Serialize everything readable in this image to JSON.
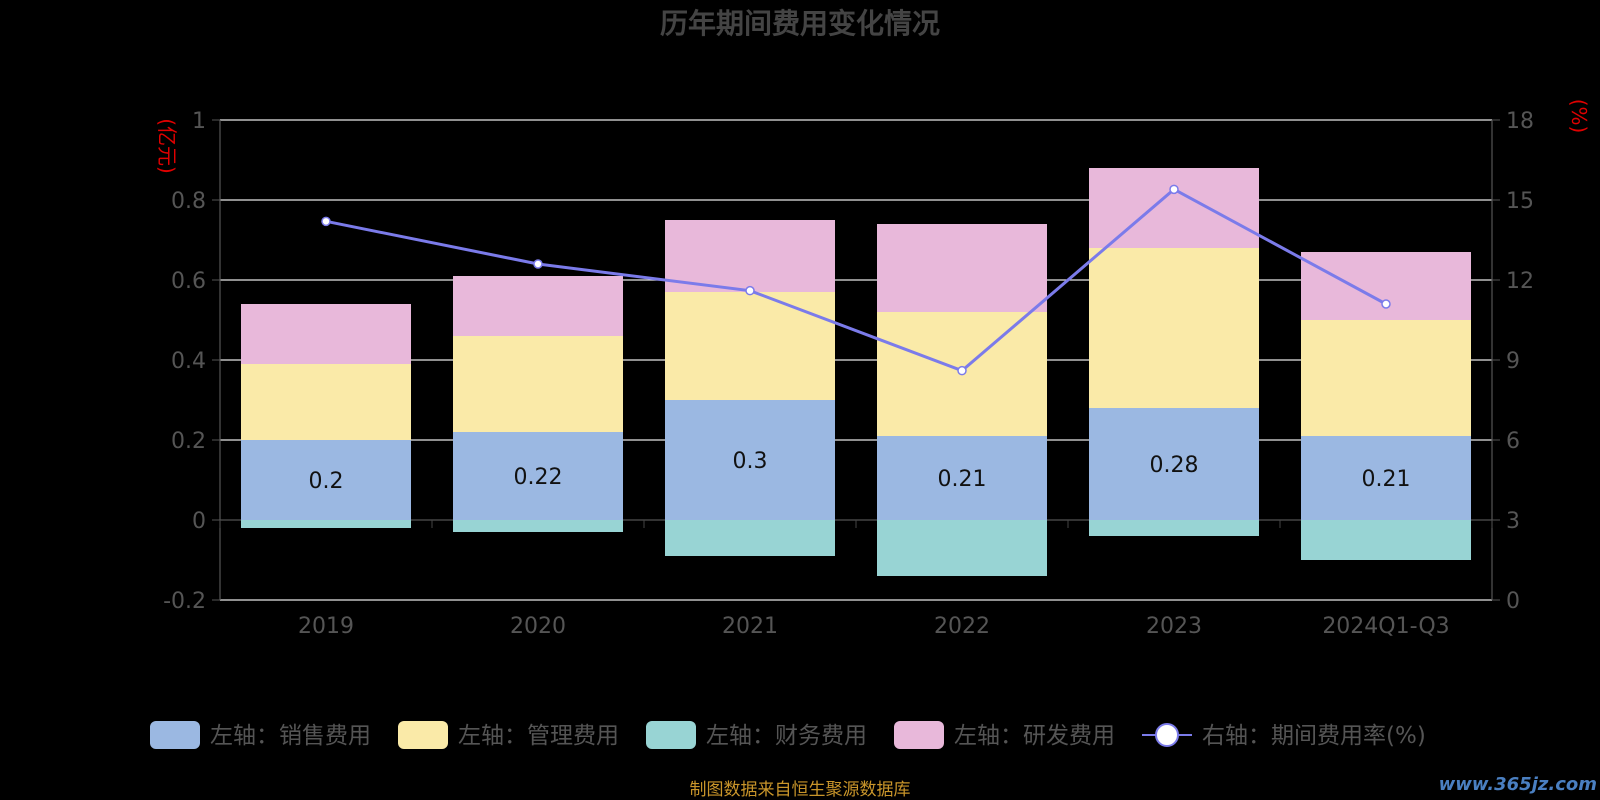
{
  "chart_data": {
    "type": "bar",
    "title": "历年期间费用变化情况",
    "categories": [
      "2019",
      "2020",
      "2021",
      "2022",
      "2023",
      "2024Q1-Q3"
    ],
    "left_axis": {
      "unit": "(亿元)",
      "min": -0.2,
      "max": 1,
      "ticks": [
        "1",
        "0.8",
        "0.6",
        "0.4",
        "0.2",
        "0",
        "-0.2"
      ]
    },
    "right_axis": {
      "unit": "(%)",
      "min": 0,
      "max": 18,
      "ticks": [
        "18",
        "15",
        "12",
        "9",
        "6",
        "3",
        "0"
      ]
    },
    "series": [
      {
        "name": "左轴：销售费用",
        "type": "bar",
        "stack": "positive",
        "color": "#9bb8e2",
        "values": [
          0.2,
          0.22,
          0.3,
          0.21,
          0.28,
          0.21
        ],
        "labels": [
          "0.2",
          "0.22",
          "0.3",
          "0.21",
          "0.28",
          "0.21"
        ]
      },
      {
        "name": "左轴：管理费用",
        "type": "bar",
        "stack": "positive",
        "color": "#faeaa8",
        "values": [
          0.19,
          0.24,
          0.27,
          0.31,
          0.4,
          0.29
        ]
      },
      {
        "name": "左轴：财务费用",
        "type": "bar",
        "stack": "negative",
        "color": "#98d4d4",
        "values": [
          -0.02,
          -0.03,
          -0.09,
          -0.14,
          -0.04,
          -0.1
        ]
      },
      {
        "name": "左轴：研发费用",
        "type": "bar",
        "stack": "positive",
        "color": "#e8b8da",
        "values": [
          0.15,
          0.15,
          0.18,
          0.22,
          0.2,
          0.17
        ]
      },
      {
        "name": "右轴：期间费用率(%)",
        "type": "line",
        "axis": "right",
        "color": "#7b7bea",
        "values": [
          14.2,
          12.6,
          11.6,
          8.6,
          15.4,
          11.1
        ]
      }
    ],
    "grid": true,
    "legend_position": "bottom"
  },
  "source_note": "制图数据来自恒生聚源数据库",
  "watermark": "www.365jz.com"
}
